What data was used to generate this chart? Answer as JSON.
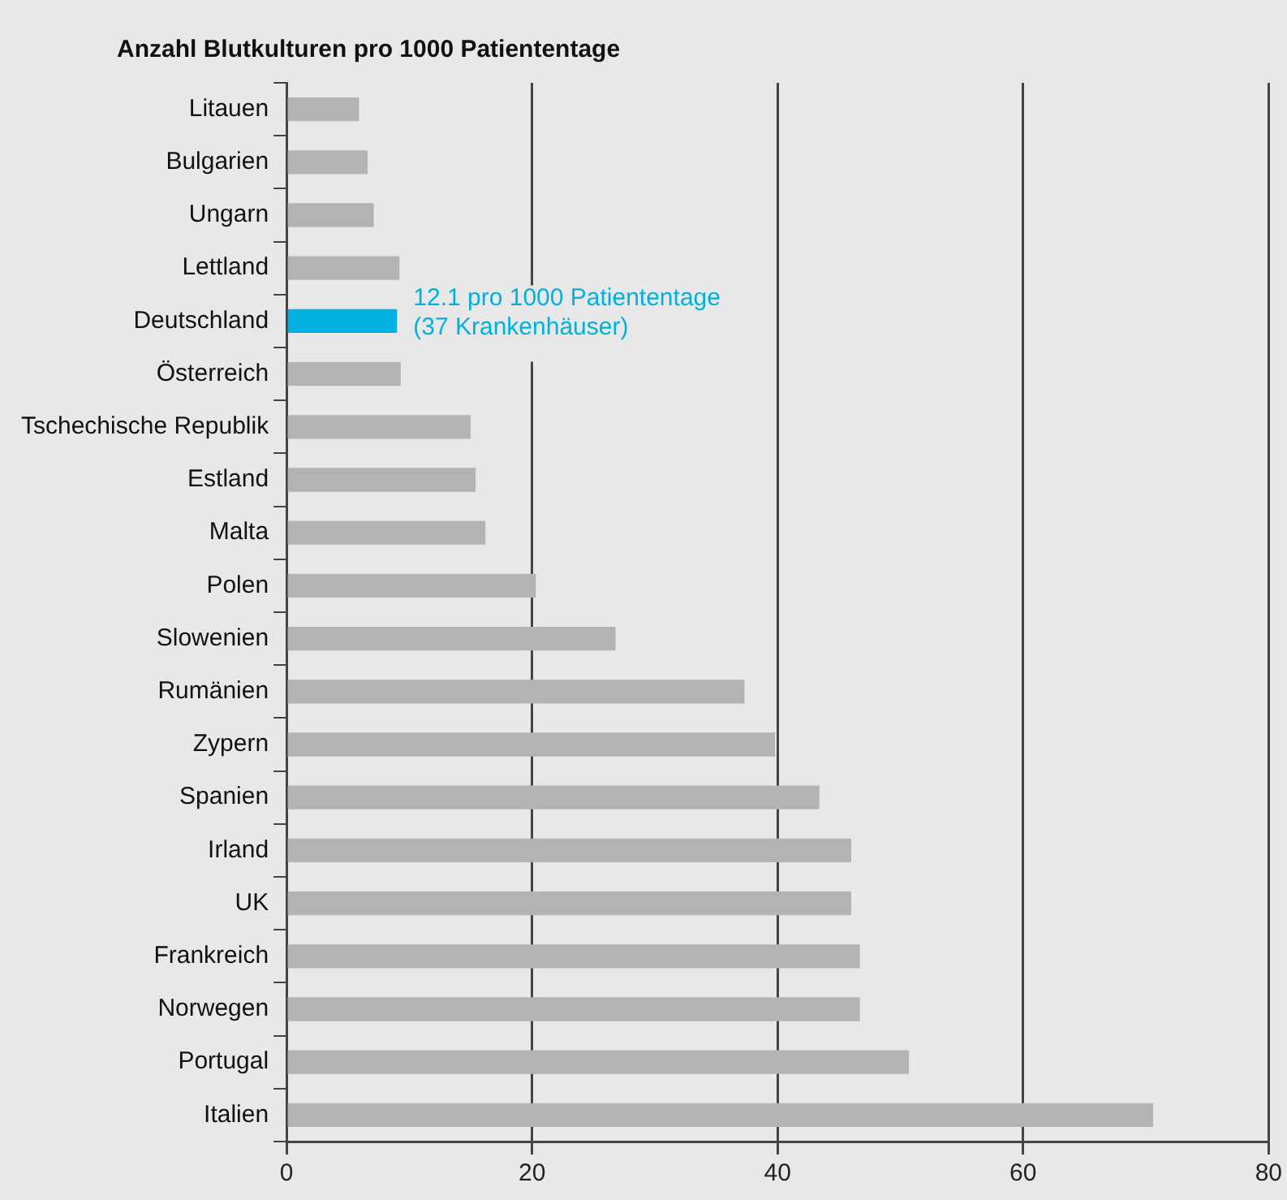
{
  "chart_data": {
    "type": "bar",
    "orientation": "horizontal",
    "title": "Anzahl Blutkulturen pro 1000 Patiententage",
    "categories": [
      "Litauen",
      "Bulgarien",
      "Ungarn",
      "Lettland",
      "Deutschland",
      "Österreich",
      "Tschechische Republik",
      "Estland",
      "Malta",
      "Polen",
      "Slowenien",
      "Rumänien",
      "Zypern",
      "Spanien",
      "Irland",
      "UK",
      "Frankreich",
      "Norwegen",
      "Portugal",
      "Italien"
    ],
    "values": [
      5.9,
      6.6,
      7.1,
      9.2,
      9.0,
      9.3,
      15.0,
      15.4,
      16.2,
      20.3,
      26.8,
      37.3,
      39.8,
      43.4,
      46.0,
      46.0,
      46.7,
      46.7,
      50.7,
      70.6
    ],
    "colors": [
      "#b3b3b3",
      "#b3b3b3",
      "#b3b3b3",
      "#b3b3b3",
      "#00b0e0",
      "#b3b3b3",
      "#b3b3b3",
      "#b3b3b3",
      "#b3b3b3",
      "#b3b3b3",
      "#b3b3b3",
      "#b3b3b3",
      "#b3b3b3",
      "#b3b3b3",
      "#b3b3b3",
      "#b3b3b3",
      "#b3b3b3",
      "#b3b3b3",
      "#b3b3b3",
      "#b3b3b3"
    ],
    "xlim": [
      0,
      80
    ],
    "xticks": [
      0,
      20,
      40,
      60,
      80
    ],
    "grid": "x",
    "legend": false,
    "annotations": [
      {
        "text": "12.1 pro 1000 Patiententage\n(37 Krankenhäuser)",
        "x": 9.0,
        "y": "Deutschland"
      }
    ]
  }
}
